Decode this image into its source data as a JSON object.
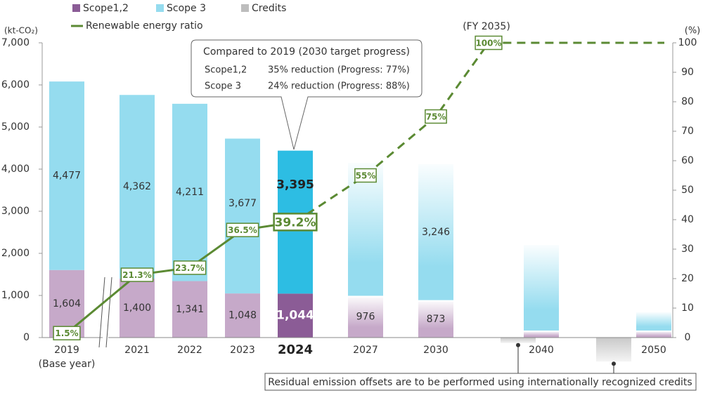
{
  "chart_data": {
    "type": "stacked-bar-line",
    "legend_items_line": "Renewable energy ratio",
    "ylabel": "(kt-CO₂)",
    "y2label": "(%)",
    "categories": [
      "2019",
      "2021",
      "2022",
      "2023",
      "2024",
      "2027",
      "2030",
      "2040",
      "2050"
    ],
    "category_notes": [
      "(Base year)",
      null,
      null,
      null,
      null,
      null,
      null,
      null,
      null
    ],
    "highlight_index": 4,
    "projection_start_index": 5,
    "series": [
      {
        "name": "Scope1,2",
        "color": "#c6a9c9",
        "legend_color": "#8b5c96",
        "highlight_color": "#8b5c96",
        "values": [
          1604,
          1400,
          1341,
          1048,
          1044,
          976,
          873,
          150,
          150
        ],
        "value_labels": [
          "1,604",
          "1,400",
          "1,341",
          "1,048",
          "1,044",
          "976",
          "873",
          null,
          null
        ]
      },
      {
        "name": "Scope 3",
        "color": "#95dcef",
        "legend_color": "#95dcef",
        "highlight_color": "#2dbde3",
        "values": [
          4477,
          4362,
          4211,
          3677,
          3395,
          3174,
          3246,
          2050,
          450
        ],
        "value_labels": [
          "4,477",
          "4,362",
          "4,211",
          "3,677",
          "3,395",
          null,
          "3,246",
          null,
          null
        ]
      },
      {
        "name": "Credits",
        "color": "#c9c9c9",
        "legend_color": "#bdbdbd",
        "values": [
          null,
          null,
          null,
          null,
          null,
          null,
          null,
          -130,
          -570
        ]
      }
    ],
    "line": {
      "name": "Renewable energy ratio",
      "color": "#5b8a33",
      "axis": "y2",
      "x": [
        2019,
        2021,
        2022,
        2023,
        2024,
        2027,
        2030,
        2035,
        2050
      ],
      "values": [
        1.5,
        21.3,
        23.7,
        36.5,
        39.2,
        55,
        75,
        100,
        100
      ],
      "value_labels": [
        "1.5%",
        "21.3%",
        "23.7%",
        "36.5%",
        "39.2%",
        "55%",
        "75%",
        "100%",
        null
      ],
      "dashed_from_index": 4
    },
    "annotation_fy": "(FY 2035)",
    "callout": {
      "title": "Compared to 2019 (2030 target progress)",
      "rows": [
        [
          "Scope1,2",
          "35% reduction (Progress: 77%)"
        ],
        [
          "Scope 3",
          "24% reduction (Progress: 88%)"
        ]
      ]
    },
    "footnote": "Residual emission offsets are to be performed using internationally recognized credits",
    "ylim": [
      0,
      7000
    ],
    "yticks": [
      0,
      {
        "value": 1000,
        "label": "1,000"
      },
      {
        "value": 2000,
        "label": "2,000"
      },
      {
        "value": 3000,
        "label": "3,000"
      },
      {
        "value": 4000,
        "label": "4,000"
      },
      {
        "value": 5000,
        "label": "5,000"
      },
      {
        "value": 6000,
        "label": "6,000"
      },
      {
        "value": 7000,
        "label": "7,000"
      }
    ],
    "y2lim": [
      0,
      100
    ],
    "y2ticks": [
      0,
      10,
      20,
      30,
      40,
      50,
      60,
      70,
      80,
      90,
      100
    ]
  }
}
